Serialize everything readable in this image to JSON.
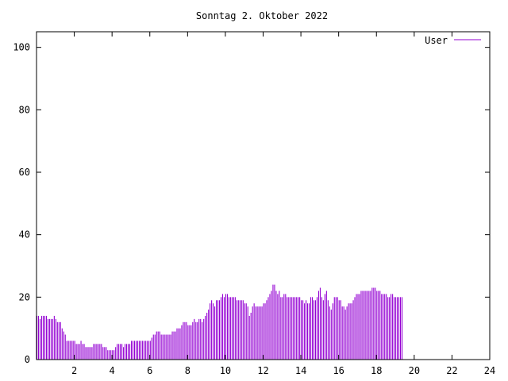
{
  "chart_data": {
    "type": "bar",
    "title": "Sonntag 2. Oktober 2022",
    "xlabel": "",
    "ylabel": "",
    "xlim": [
      0,
      24
    ],
    "ylim": [
      0,
      105
    ],
    "xticks": [
      "2",
      "4",
      "6",
      "8",
      "10",
      "12",
      "14",
      "16",
      "18",
      "20",
      "22",
      "24"
    ],
    "yticks": [
      "0",
      "20",
      "40",
      "60",
      "80",
      "100"
    ],
    "grid": false,
    "legend_position": "top-right",
    "series": [
      {
        "name": "User",
        "color": "#9400d3",
        "interval_minutes": 5,
        "values": [
          14,
          14,
          13,
          14,
          14,
          14,
          14,
          13,
          13,
          13,
          13,
          14,
          13,
          12,
          12,
          12,
          10,
          9,
          8,
          6,
          6,
          6,
          6,
          6,
          6,
          5,
          5,
          5,
          6,
          5,
          5,
          4,
          4,
          4,
          4,
          4,
          5,
          5,
          5,
          5,
          5,
          5,
          4,
          4,
          4,
          3,
          3,
          3,
          3,
          3,
          4,
          5,
          5,
          5,
          5,
          4,
          5,
          5,
          5,
          5,
          6,
          6,
          6,
          6,
          6,
          6,
          6,
          6,
          6,
          6,
          6,
          6,
          6,
          7,
          8,
          8,
          9,
          9,
          9,
          8,
          8,
          8,
          8,
          8,
          8,
          8,
          9,
          9,
          9,
          10,
          10,
          10,
          11,
          12,
          12,
          12,
          11,
          11,
          11,
          12,
          13,
          12,
          12,
          13,
          13,
          12,
          13,
          14,
          15,
          16,
          18,
          19,
          18,
          17,
          19,
          19,
          19,
          20,
          21,
          20,
          21,
          21,
          20,
          20,
          20,
          20,
          20,
          19,
          19,
          19,
          19,
          19,
          18,
          18,
          17,
          14,
          15,
          17,
          18,
          17,
          17,
          17,
          17,
          17,
          18,
          18,
          19,
          20,
          21,
          22,
          24,
          24,
          22,
          21,
          22,
          20,
          20,
          21,
          21,
          20,
          20,
          20,
          20,
          20,
          20,
          20,
          20,
          20,
          19,
          19,
          18,
          19,
          18,
          18,
          20,
          20,
          19,
          19,
          20,
          22,
          23,
          20,
          19,
          21,
          22,
          19,
          17,
          16,
          18,
          20,
          20,
          20,
          19,
          19,
          17,
          17,
          16,
          17,
          18,
          18,
          18,
          19,
          20,
          21,
          21,
          21,
          22,
          22,
          22,
          22,
          22,
          22,
          22,
          23,
          23,
          23,
          22,
          22,
          22,
          21,
          21,
          21,
          21,
          20,
          20,
          21,
          21,
          20,
          20,
          20,
          20,
          20,
          20
        ]
      }
    ]
  }
}
